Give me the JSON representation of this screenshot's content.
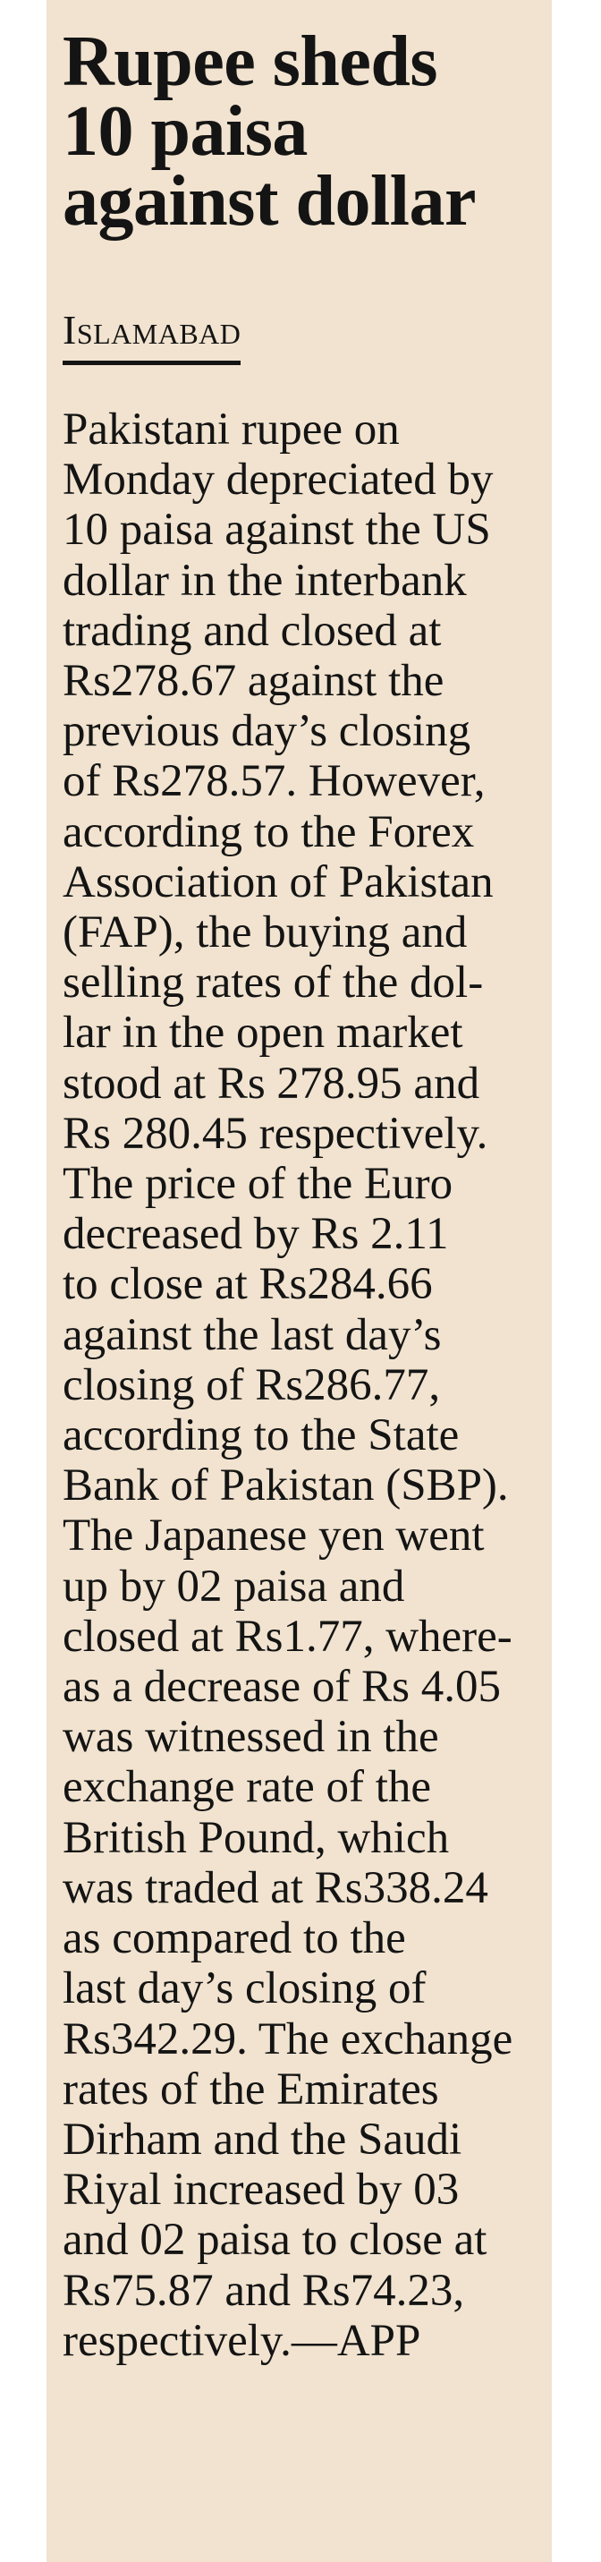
{
  "article": {
    "headline": [
      "Rupee sheds",
      "10 paisa",
      "against dollar"
    ],
    "dateline": "Islamabad",
    "body": [
      "Pakistani rupee on",
      "Monday depreciated by",
      "10 paisa against the US",
      "dollar in the interbank",
      "trading and closed at",
      "Rs278.67 against the",
      "previous day’s closing",
      "of Rs278.57. However,",
      "according to the Forex",
      "Association of Pakistan",
      "(FAP), the buying and",
      "selling rates of the dol-",
      "lar in the open market",
      "stood at Rs 278.95 and",
      "Rs 280.45 respectively.",
      "The price of the Euro",
      "decreased by Rs 2.11",
      "to close at Rs284.66",
      "against the last day’s",
      "closing of Rs286.77,",
      "according to the State",
      "Bank of Pakistan (SBP).",
      "The Japanese yen went",
      "up by 02 paisa and",
      "closed at Rs1.77, where-",
      "as a decrease of Rs 4.05",
      "was witnessed in the",
      "exchange rate of the",
      "British Pound, which",
      "was traded at Rs338.24",
      "as compared to the",
      "last day’s closing of",
      "Rs342.29. The exchange",
      "rates of the Emirates",
      "Dirham and the Saudi",
      "Riyal increased by 03",
      "and 02 paisa to close at",
      "Rs75.87 and Rs74.23,",
      "respectively.—APP"
    ]
  }
}
